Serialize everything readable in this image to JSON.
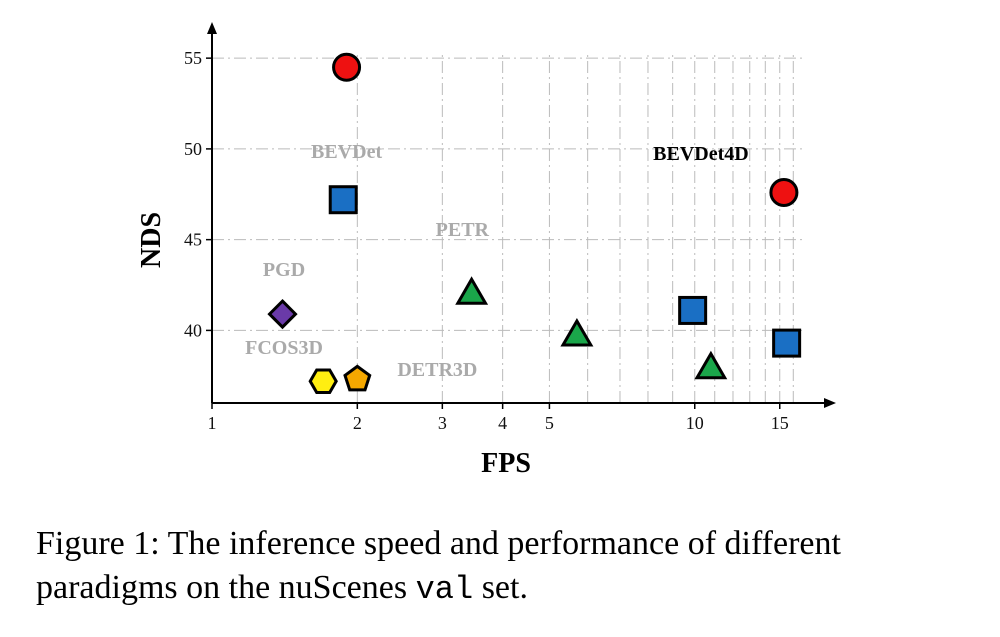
{
  "chart_data": {
    "type": "scatter",
    "xlabel": "FPS",
    "ylabel": "NDS",
    "x_scale": "log",
    "xlim": [
      1,
      17
    ],
    "ylim": [
      36,
      56
    ],
    "x_ticks": [
      1,
      2,
      3,
      4,
      5,
      10,
      15
    ],
    "y_ticks": [
      40,
      45,
      50,
      55
    ],
    "grid": true,
    "points": [
      {
        "x": 1.9,
        "y": 54.5,
        "marker": "circle",
        "color": "#ee1111"
      },
      {
        "x": 15.3,
        "y": 47.6,
        "marker": "circle",
        "color": "#ee1111"
      },
      {
        "x": 1.87,
        "y": 47.2,
        "marker": "square",
        "color": "#1a6fc4"
      },
      {
        "x": 9.9,
        "y": 41.1,
        "marker": "square",
        "color": "#1a6fc4"
      },
      {
        "x": 15.5,
        "y": 39.3,
        "marker": "square",
        "color": "#1a6fc4"
      },
      {
        "x": 3.45,
        "y": 42.1,
        "marker": "triangle",
        "color": "#1aa64a"
      },
      {
        "x": 5.7,
        "y": 39.8,
        "marker": "triangle",
        "color": "#1aa64a"
      },
      {
        "x": 10.8,
        "y": 38.0,
        "marker": "triangle",
        "color": "#1aa64a"
      },
      {
        "x": 1.4,
        "y": 40.9,
        "marker": "diamond",
        "color": "#6a3aa8"
      },
      {
        "x": 1.7,
        "y": 37.2,
        "marker": "hexagon",
        "color": "#ffee11"
      },
      {
        "x": 2.0,
        "y": 37.3,
        "marker": "pentagon",
        "color": "#f5a800"
      }
    ],
    "annotations": [
      {
        "text": "BEVDet",
        "x": 1.9,
        "y": 49.5,
        "color": "#aaaaaa"
      },
      {
        "text": "BEVDet4D",
        "x": 10.3,
        "y": 49.4,
        "color": "#000000"
      },
      {
        "text": "PETR",
        "x": 3.3,
        "y": 45.2,
        "color": "#aaaaaa"
      },
      {
        "text": "PGD",
        "x": 1.41,
        "y": 43.0,
        "color": "#aaaaaa"
      },
      {
        "text": "FCOS3D",
        "x": 1.41,
        "y": 38.7,
        "color": "#aaaaaa"
      },
      {
        "text": "DETR3D",
        "x": 2.93,
        "y": 37.5,
        "color": "#aaaaaa"
      }
    ]
  },
  "caption": {
    "text": "Figure 1: The inference speed and performance of different paradigms on the nuScenes ",
    "code": "val",
    "suffix": " set."
  }
}
